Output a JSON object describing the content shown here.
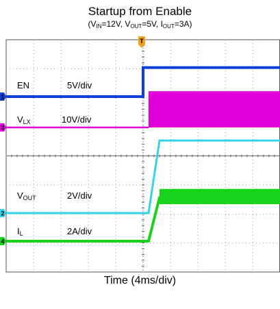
{
  "title": "Startup from Enable",
  "subtitle": {
    "open": "(V",
    "vin_sub": "IN",
    "vin_rest": "=12V, V",
    "vout_sub": "OUT",
    "vout_rest": "=5V, I",
    "iout_sub": "OUT",
    "close": "=3A)"
  },
  "xlabel": "Time (4ms/div)",
  "trigger_marker": "T",
  "colors": {
    "EN": "#0b3fd6",
    "VLX": "#e000d8",
    "VOUT": "#35d2e8",
    "IL": "#19d21c",
    "grid": "#9a9a9a",
    "frame": "#555555"
  },
  "chart_data": {
    "type": "line",
    "title": "Startup from Enable",
    "subtitle": "(VIN=12V, VOUT=5V, IOUT=3A)",
    "xlabel": "Time (4ms/div)",
    "ylabel": "",
    "x_divisions": 10,
    "y_divisions": 8,
    "x_per_div_ms": 4,
    "xlim_ms": [
      0,
      40
    ],
    "grid": true,
    "series": [
      {
        "name": "EN",
        "channel": "1",
        "channel_marker": "1",
        "scale_label": "5V/div",
        "label_parts": [
          "EN"
        ],
        "volts_per_div": 5,
        "low": 0,
        "high": 5,
        "step_time_ms": 20
      },
      {
        "name": "VLX",
        "channel": "3",
        "channel_marker": "3",
        "scale_label": "10V/div",
        "label_parts": [
          "V",
          "LX"
        ],
        "volts_per_div": 10,
        "low": 0,
        "high": 12,
        "start_time_ms": 20.8,
        "switching": true
      },
      {
        "name": "VOUT",
        "channel": "2",
        "channel_marker": "2",
        "scale_label": "2V/div",
        "label_parts": [
          "V",
          "OUT"
        ],
        "volts_per_div": 2,
        "start_time_ms": 20.8,
        "end_time_ms": 22.4,
        "points": [
          [
            0,
            0
          ],
          [
            20.8,
            0
          ],
          [
            22.4,
            5
          ],
          [
            40,
            5
          ]
        ]
      },
      {
        "name": "IL",
        "channel": "4",
        "channel_marker": "4",
        "scale_label": "2A/div",
        "label_parts": [
          "I",
          "L"
        ],
        "amps_per_div": 2,
        "points": [
          [
            0,
            0
          ],
          [
            20.8,
            0
          ],
          [
            22.4,
            3
          ],
          [
            40,
            3
          ]
        ]
      }
    ]
  }
}
